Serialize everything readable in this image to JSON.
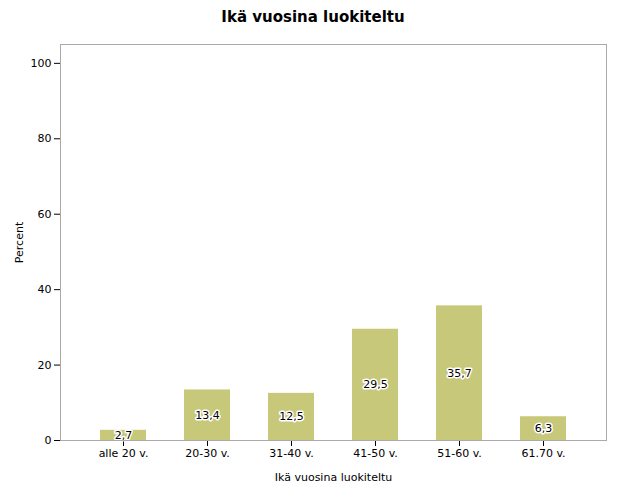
{
  "chart_data": {
    "type": "bar",
    "title": "Ikä vuosina luokiteltu",
    "xlabel": "Ikä vuosina luokiteltu",
    "ylabel": "Percent",
    "categories": [
      "alle 20 v.",
      "20-30 v.",
      "31-40 v.",
      "41-50 v.",
      "51-60 v.",
      "61.70 v."
    ],
    "values": [
      2.7,
      13.4,
      12.5,
      29.5,
      35.7,
      6.3
    ],
    "value_labels": [
      "2,7",
      "13,4",
      "12,5",
      "29,5",
      "35,7",
      "6,3"
    ],
    "data_labels": true,
    "color": "#c8c87a",
    "ylim": [
      0,
      105
    ],
    "yticks": [
      0,
      20,
      40,
      60,
      80,
      100
    ],
    "grid": false
  }
}
